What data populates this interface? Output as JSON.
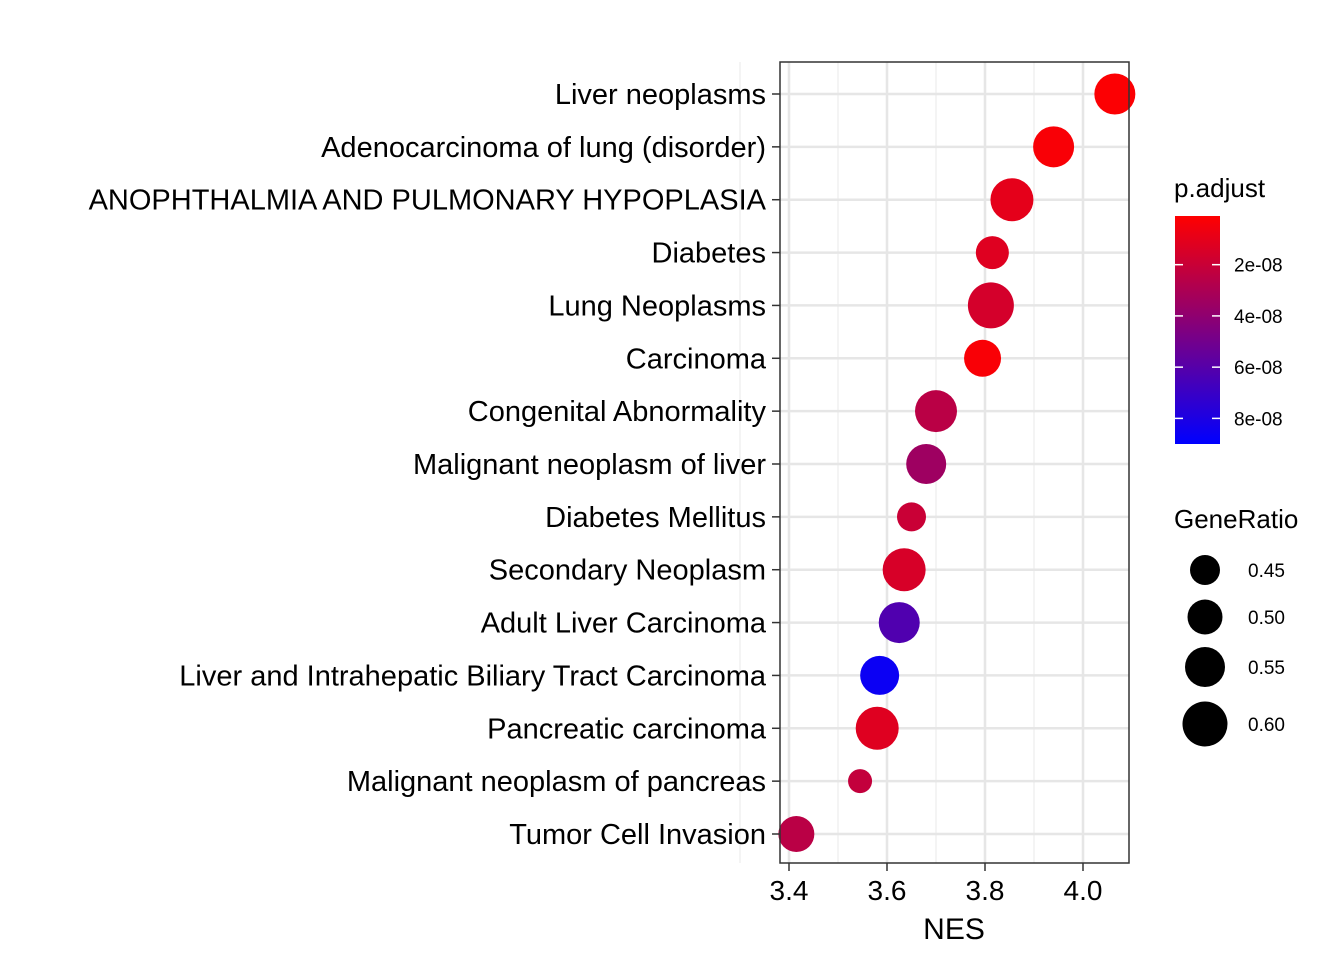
{
  "chart_data": {
    "type": "scatter",
    "title": "",
    "xlabel": "NES",
    "ylabel": "",
    "xlim": [
      3.38,
      4.08
    ],
    "xticks": [
      3.4,
      3.6,
      3.8,
      4.0
    ],
    "xtick_labels": [
      "3.4",
      "3.6",
      "3.8",
      "4.0"
    ],
    "grid": true,
    "legend_position": "right",
    "categories": [
      "Liver neoplasms",
      "Adenocarcinoma of lung (disorder)",
      "ANOPHTHALMIA AND PULMONARY HYPOPLASIA",
      "Diabetes",
      "Lung Neoplasms",
      "Carcinoma",
      "Congenital Abnormality",
      "Malignant neoplasm of liver",
      "Diabetes Mellitus",
      "Secondary Neoplasm",
      "Adult Liver Carcinoma",
      "Liver and Intrahepatic Biliary Tract Carcinoma",
      "Pancreatic carcinoma",
      "Malignant neoplasm of pancreas",
      "Tumor Cell Invasion"
    ],
    "points": [
      {
        "category": "Liver neoplasms",
        "NES": 4.065,
        "p_adjust": 2e-09,
        "GeneRatio": 0.56
      },
      {
        "category": "Adenocarcinoma of lung (disorder)",
        "NES": 3.94,
        "p_adjust": 3e-09,
        "GeneRatio": 0.56
      },
      {
        "category": "ANOPHTHALMIA AND PULMONARY HYPOPLASIA",
        "NES": 3.855,
        "p_adjust": 1e-08,
        "GeneRatio": 0.58
      },
      {
        "category": "Diabetes",
        "NES": 3.815,
        "p_adjust": 1.2e-08,
        "GeneRatio": 0.48
      },
      {
        "category": "Lung Neoplasms",
        "NES": 3.812,
        "p_adjust": 1.6e-08,
        "GeneRatio": 0.61
      },
      {
        "category": "Carcinoma",
        "NES": 3.795,
        "p_adjust": 3e-09,
        "GeneRatio": 0.52
      },
      {
        "category": "Congenital Abnormality",
        "NES": 3.7,
        "p_adjust": 2.5e-08,
        "GeneRatio": 0.57
      },
      {
        "category": "Malignant neoplasm of liver",
        "NES": 3.68,
        "p_adjust": 3.5e-08,
        "GeneRatio": 0.55
      },
      {
        "category": "Diabetes Mellitus",
        "NES": 3.65,
        "p_adjust": 2e-08,
        "GeneRatio": 0.44
      },
      {
        "category": "Secondary Neoplasm",
        "NES": 3.635,
        "p_adjust": 1.5e-08,
        "GeneRatio": 0.58
      },
      {
        "category": "Adult Liver Carcinoma",
        "NES": 3.625,
        "p_adjust": 6.2e-08,
        "GeneRatio": 0.56
      },
      {
        "category": "Liver and Intrahepatic Biliary Tract Carcinoma",
        "NES": 3.585,
        "p_adjust": 8.6e-08,
        "GeneRatio": 0.54
      },
      {
        "category": "Pancreatic carcinoma",
        "NES": 3.58,
        "p_adjust": 1.2e-08,
        "GeneRatio": 0.58
      },
      {
        "category": "Malignant neoplasm of pancreas",
        "NES": 3.545,
        "p_adjust": 2.2e-08,
        "GeneRatio": 0.39
      },
      {
        "category": "Tumor Cell Invasion",
        "NES": 3.415,
        "p_adjust": 2.5e-08,
        "GeneRatio": 0.51
      }
    ],
    "color_legend": {
      "title": "p.adjust",
      "low_color": "#ff0000",
      "high_color": "#0000ff",
      "range": [
        1e-09,
        9e-08
      ],
      "ticks": [
        2e-08,
        4e-08,
        6e-08,
        8e-08
      ],
      "tick_labels": [
        "2e-08",
        "4e-08",
        "6e-08",
        "8e-08"
      ]
    },
    "size_legend": {
      "title": "GeneRatio",
      "values": [
        0.45,
        0.5,
        0.55,
        0.6
      ],
      "labels": [
        "0.45",
        "0.50",
        "0.55",
        "0.60"
      ],
      "color": "#000000"
    }
  }
}
